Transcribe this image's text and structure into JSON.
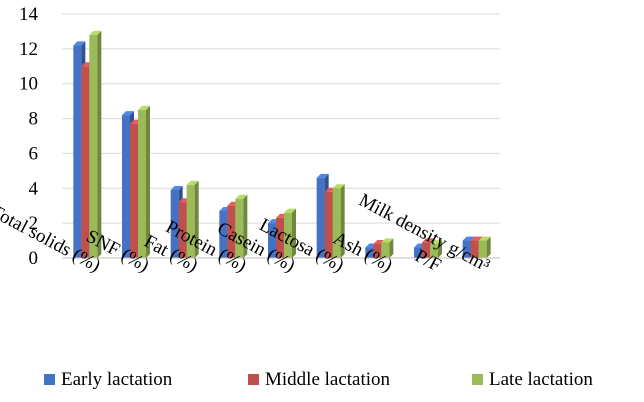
{
  "chart_data": {
    "type": "bar",
    "bar_style": "3d",
    "categories": [
      "Total  solids (%)",
      "SNF (%)",
      "Fat (%)",
      "Protein (%)",
      "Casein (%)",
      "Lactosa (%)",
      "Ash (%)",
      "P/F",
      "Milk density g/cm³"
    ],
    "series": [
      {
        "name": "Early lactation",
        "color": "#4472C4",
        "values": [
          12.2,
          8.2,
          3.9,
          2.7,
          2.0,
          4.6,
          0.6,
          0.6,
          1.0
        ]
      },
      {
        "name": "Middle lactation",
        "color": "#C0504D",
        "values": [
          11.0,
          7.7,
          3.2,
          3.0,
          2.3,
          3.8,
          0.8,
          0.9,
          1.0
        ]
      },
      {
        "name": "Late lactation",
        "color": "#9BBB59",
        "values": [
          12.8,
          8.5,
          4.2,
          3.4,
          2.6,
          4.0,
          0.9,
          0.8,
          1.0
        ]
      }
    ],
    "y_ticks": [
      "0",
      "2",
      "4",
      "6",
      "8",
      "10",
      "12",
      "14"
    ],
    "ylim": [
      0,
      14
    ],
    "title": "",
    "xlabel": "",
    "ylabel": "",
    "grid": true,
    "legend_position": "bottom"
  }
}
